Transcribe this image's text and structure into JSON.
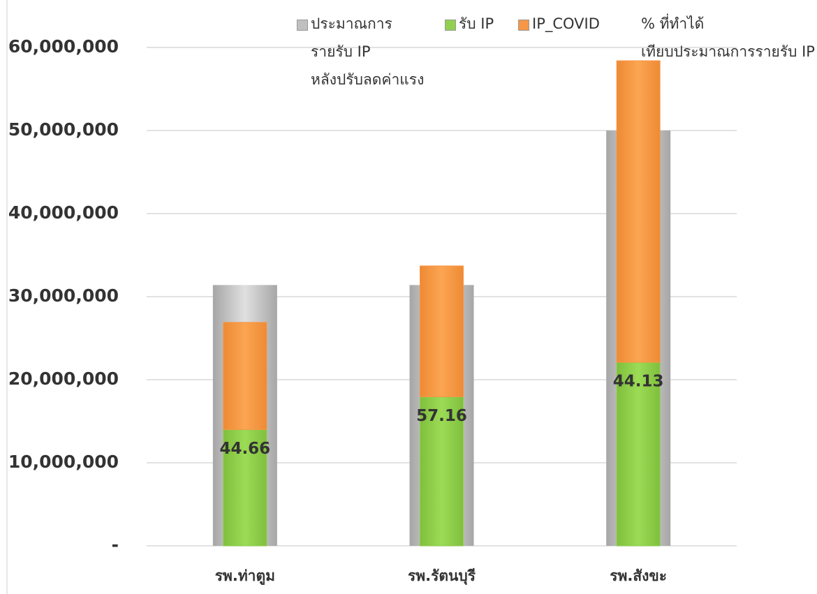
{
  "chart_data": {
    "type": "bar",
    "categories": [
      "รพ.ท่าตูม",
      "รพ.รัตนบุรี",
      "รพ.สังขะ"
    ],
    "series": [
      {
        "name": "ประมาณการ\nรายรับ IP\nหลังปรับลดค่าแรง",
        "color": "#c0c0c0",
        "values": [
          31400000,
          31400000,
          50000000
        ]
      },
      {
        "name": "รับ IP",
        "color": "#92d050",
        "values": [
          14000000,
          17950000,
          22100000
        ]
      },
      {
        "name": "IP_COVID",
        "color": "#f79646",
        "values": [
          12900000,
          15750000,
          36300000
        ]
      },
      {
        "name": "% ที่ทำได้\nเทียบประมาณการรายรับ IP",
        "values": [
          44.66,
          57.16,
          44.13
        ]
      }
    ],
    "ylim": [
      0,
      60000000
    ],
    "yticks": [
      {
        "value": 0,
        "label": "-"
      },
      {
        "value": 10000000,
        "label": "10,000,000"
      },
      {
        "value": 20000000,
        "label": "20,000,000"
      },
      {
        "value": 30000000,
        "label": "30,000,000"
      },
      {
        "value": 40000000,
        "label": "40,000,000"
      },
      {
        "value": 50000000,
        "label": "50,000,000"
      },
      {
        "value": 60000000,
        "label": "60,000,000"
      }
    ],
    "grid": true,
    "legend": "top"
  }
}
